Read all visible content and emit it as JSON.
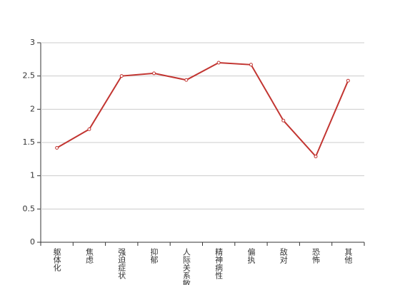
{
  "chart_data": {
    "type": "line",
    "categories": [
      "躯体化",
      "焦虑",
      "强迫症状",
      "抑郁",
      "人际关系敏感",
      "精神病性",
      "偏执",
      "敌对",
      "恐怖",
      "其他"
    ],
    "values": [
      1.42,
      1.7,
      2.5,
      2.54,
      2.44,
      2.7,
      2.67,
      1.83,
      1.29,
      2.43
    ],
    "color": "#c23531",
    "ylim": [
      0,
      3
    ],
    "yticks": [
      0,
      0.5,
      1,
      1.5,
      2,
      2.5,
      3
    ],
    "grid": true
  }
}
